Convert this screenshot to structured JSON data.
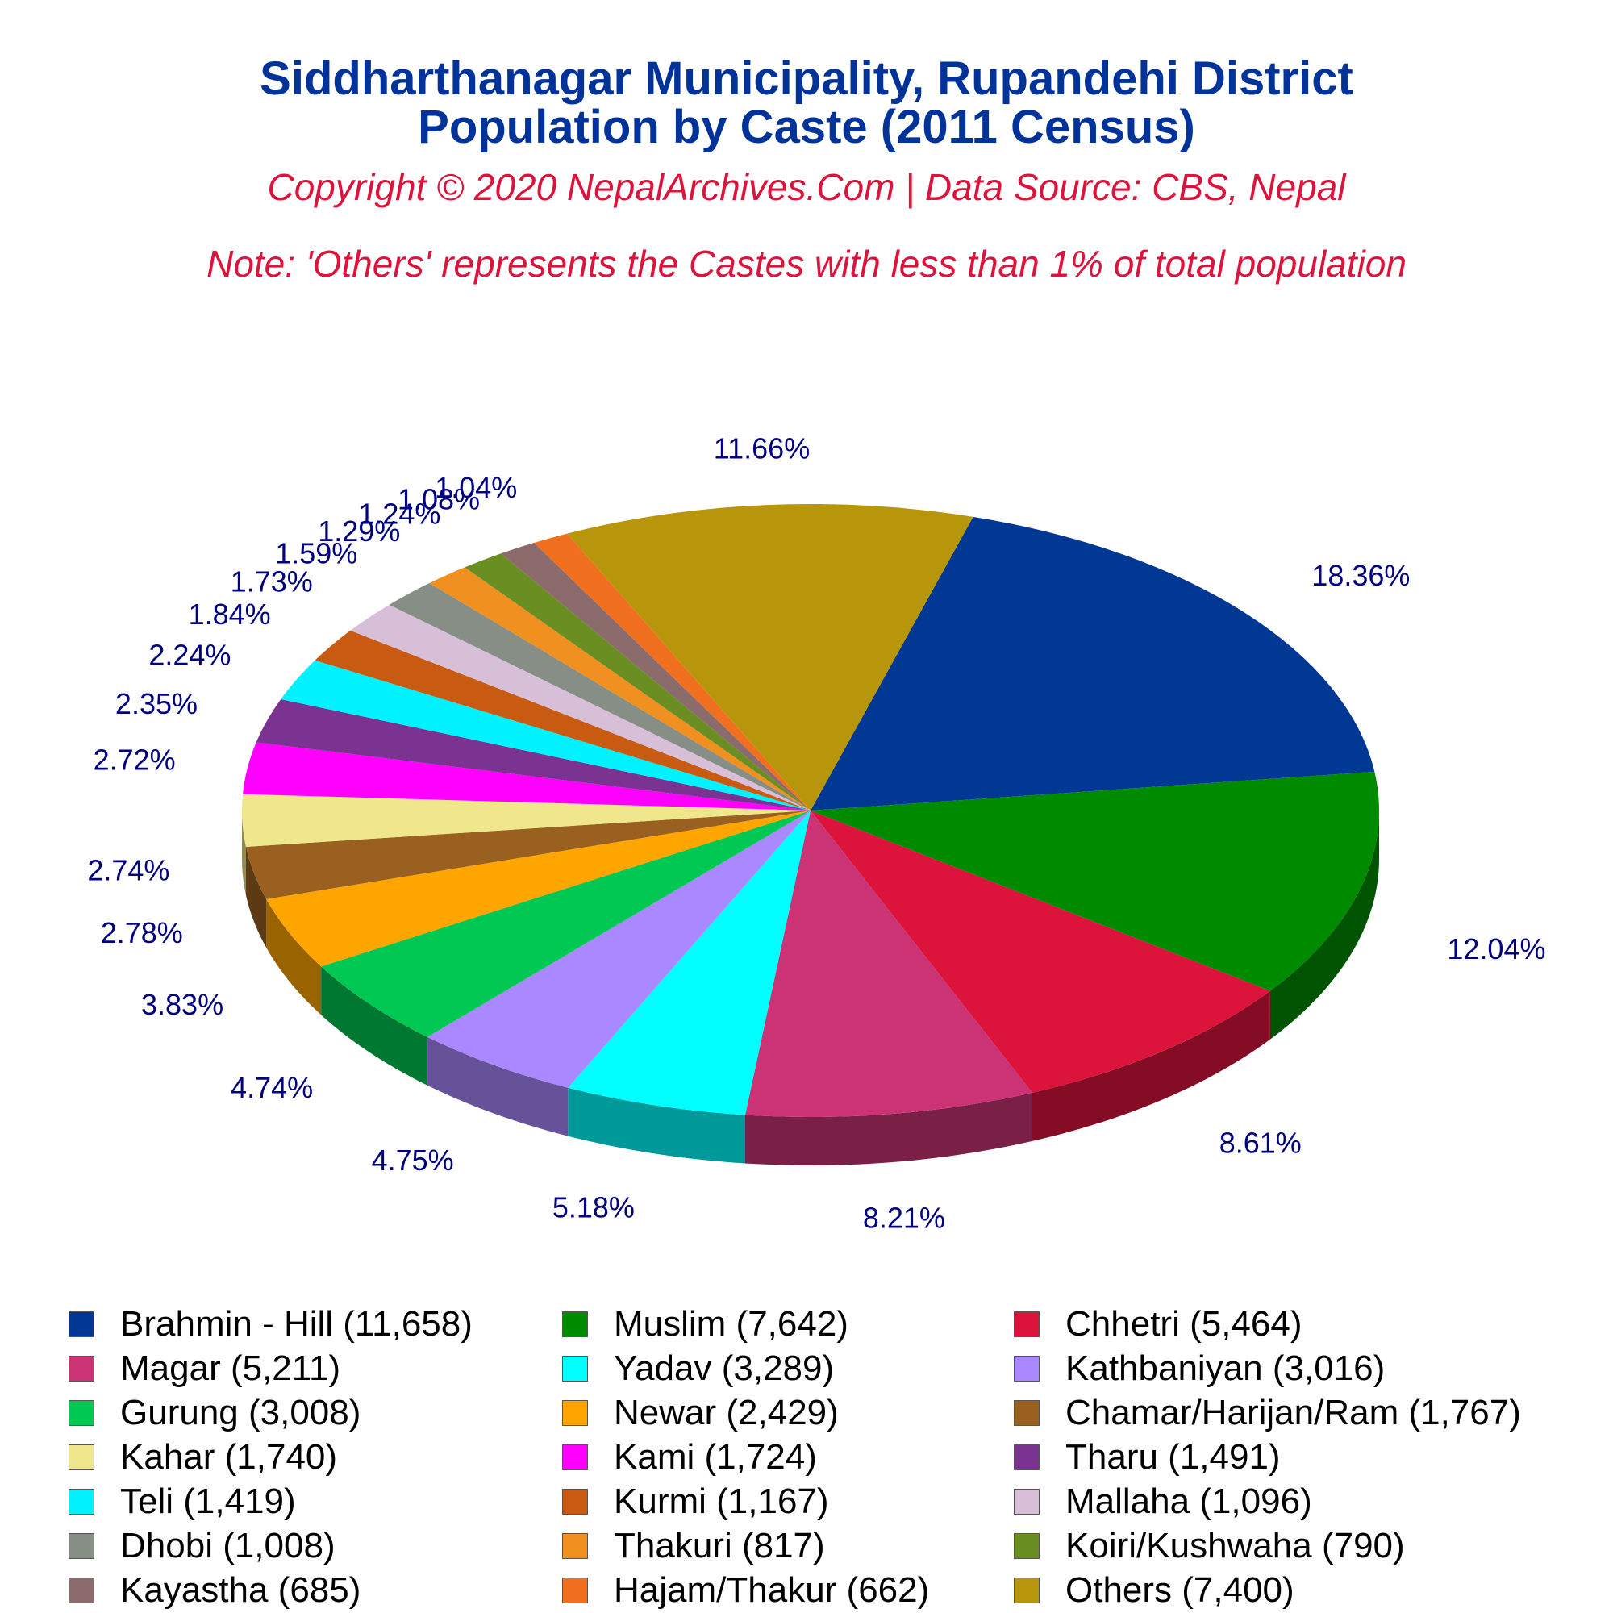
{
  "header": {
    "title_line1": "Siddharthanagar Municipality, Rupandehi District",
    "title_line2": "Population by Caste (2011 Census)",
    "copyright": "Copyright © 2020 NepalArchives.Com | Data Source: CBS, Nepal",
    "note": "Note: 'Others' represents the Castes with less than 1% of total population"
  },
  "chart_data": {
    "type": "pie",
    "title": "Siddharthanagar Municipality, Rupandehi District Population by Caste (2011 Census)",
    "slices": [
      {
        "name": "Brahmin - Hill",
        "value": 11658,
        "value_label": "11,658",
        "percent": "18.36%",
        "color": "#003894"
      },
      {
        "name": "Muslim",
        "value": 7642,
        "value_label": "7,642",
        "percent": "12.04%",
        "color": "#008a00"
      },
      {
        "name": "Chhetri",
        "value": 5464,
        "value_label": "5,464",
        "percent": "8.61%",
        "color": "#dc143c"
      },
      {
        "name": "Magar",
        "value": 5211,
        "value_label": "5,211",
        "percent": "8.21%",
        "color": "#cc3375"
      },
      {
        "name": "Yadav",
        "value": 3289,
        "value_label": "3,289",
        "percent": "5.18%",
        "color": "#00ffff"
      },
      {
        "name": "Kathbaniyan",
        "value": 3016,
        "value_label": "3,016",
        "percent": "4.75%",
        "color": "#aa88ff"
      },
      {
        "name": "Gurung",
        "value": 3008,
        "value_label": "3,008",
        "percent": "4.74%",
        "color": "#00c853"
      },
      {
        "name": "Newar",
        "value": 2429,
        "value_label": "2,429",
        "percent": "3.83%",
        "color": "#ffa500"
      },
      {
        "name": "Chamar/Harijan/Ram",
        "value": 1767,
        "value_label": "1,767",
        "percent": "2.78%",
        "color": "#996020"
      },
      {
        "name": "Kahar",
        "value": 1740,
        "value_label": "1,740",
        "percent": "2.74%",
        "color": "#f0e68c"
      },
      {
        "name": "Kami",
        "value": 1724,
        "value_label": "1,724",
        "percent": "2.72%",
        "color": "#ff00ff"
      },
      {
        "name": "Tharu",
        "value": 1491,
        "value_label": "1,491",
        "percent": "2.35%",
        "color": "#7a3390"
      },
      {
        "name": "Teli",
        "value": 1419,
        "value_label": "1,419",
        "percent": "2.24%",
        "color": "#00f2ff"
      },
      {
        "name": "Kurmi",
        "value": 1167,
        "value_label": "1,167",
        "percent": "1.84%",
        "color": "#c85a12"
      },
      {
        "name": "Mallaha",
        "value": 1096,
        "value_label": "1,096",
        "percent": "1.73%",
        "color": "#d8bfd8"
      },
      {
        "name": "Dhobi",
        "value": 1008,
        "value_label": "1,008",
        "percent": "1.59%",
        "color": "#868e85"
      },
      {
        "name": "Thakuri",
        "value": 817,
        "value_label": "817",
        "percent": "1.29%",
        "color": "#f09020"
      },
      {
        "name": "Koiri/Kushwaha",
        "value": 790,
        "value_label": "790",
        "percent": "1.24%",
        "color": "#6b8e23"
      },
      {
        "name": "Kayastha",
        "value": 685,
        "value_label": "685",
        "percent": "1.08%",
        "color": "#8b6b6b"
      },
      {
        "name": "Hajam/Thakur",
        "value": 662,
        "value_label": "662",
        "percent": "1.04%",
        "color": "#f07020"
      },
      {
        "name": "Others",
        "value": 7400,
        "value_label": "7,400",
        "percent": "11.66%",
        "color": "#b8960c"
      }
    ],
    "legend_position": "bottom"
  }
}
